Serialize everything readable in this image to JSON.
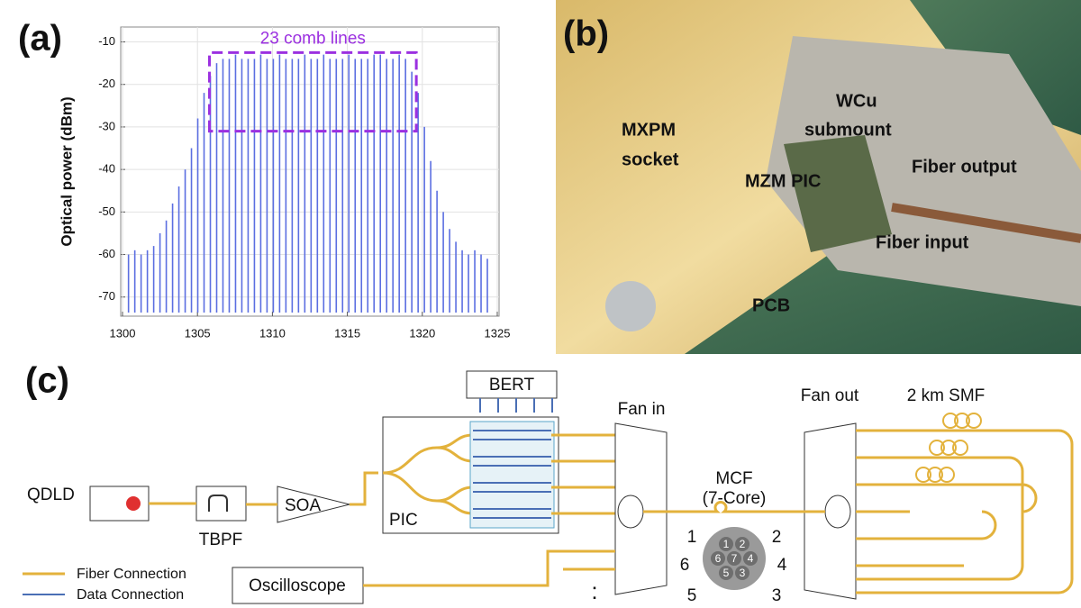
{
  "panels": {
    "a": "(a)",
    "b": "(b)",
    "c": "(c)"
  },
  "chart_data": {
    "type": "comb",
    "ylabel": "Optical power (dBm)",
    "color": "#5b6ee1",
    "x": [
      1300.4,
      1300.82,
      1301.24,
      1301.66,
      1302.08,
      1302.5,
      1302.92,
      1303.34,
      1303.76,
      1304.18,
      1304.6,
      1305.02,
      1305.44,
      1305.86,
      1306.28,
      1306.7,
      1307.12,
      1307.54,
      1307.96,
      1308.38,
      1308.8,
      1309.22,
      1309.64,
      1310.06,
      1310.48,
      1310.9,
      1311.32,
      1311.74,
      1312.16,
      1312.58,
      1313.0,
      1313.42,
      1313.84,
      1314.26,
      1314.68,
      1315.1,
      1315.52,
      1315.94,
      1316.36,
      1316.78,
      1317.2,
      1317.62,
      1318.04,
      1318.46,
      1318.88,
      1319.3,
      1319.72,
      1320.14,
      1320.56,
      1320.98,
      1321.4,
      1321.82,
      1322.24,
      1322.66,
      1323.08,
      1323.5,
      1323.92,
      1324.34
    ],
    "values": [
      -60,
      -59,
      -60,
      -59,
      -58,
      -55,
      -52,
      -48,
      -44,
      -40,
      -35,
      -28,
      -22,
      -18,
      -15,
      -14,
      -14,
      -13,
      -14,
      -14,
      -14,
      -13,
      -14,
      -14,
      -13,
      -14,
      -14,
      -14,
      -13,
      -14,
      -14,
      -13,
      -14,
      -14,
      -14,
      -13,
      -14,
      -14,
      -14,
      -13,
      -13,
      -14,
      -14,
      -13,
      -14,
      -17,
      -22,
      -30,
      -38,
      -45,
      -50,
      -54,
      -57,
      -59,
      -60,
      -59,
      -60,
      -61
    ],
    "xlim": [
      1300,
      1325
    ],
    "xticks": [
      1300,
      1305,
      1310,
      1315,
      1320,
      1325
    ],
    "ylim": [
      -74.5,
      -6.5
    ],
    "yticks": [
      -70,
      -60,
      -50,
      -40,
      -30,
      -20,
      -10
    ],
    "grid": true,
    "annotation": {
      "text": "23 comb lines",
      "color": "#9b30e0",
      "x": [
        1305.8,
        1319.6
      ],
      "y": [
        -31,
        -12.5
      ]
    }
  },
  "photo": {
    "mxpm": [
      "MXPM",
      "socket"
    ],
    "wcu": [
      "WCu",
      "submount"
    ],
    "mzm": "MZM PIC",
    "fiber_output": "Fiber output",
    "fiber_input": "Fiber input",
    "pcb": "PCB"
  },
  "diagram": {
    "bert": "BERT",
    "fan_in": "Fan in",
    "fan_out": "Fan out",
    "smf": "2 km SMF",
    "qdld": "QDLD",
    "tbpf": "TBPF",
    "soa": "SOA",
    "pic": "PIC",
    "mcf": [
      "MCF",
      "(7-Core)"
    ],
    "cores": [
      "1",
      "2",
      "3",
      "4",
      "5",
      "6",
      "7"
    ],
    "oscilloscope": "Oscilloscope",
    "legend": [
      "Fiber Connection",
      "Data Connection"
    ],
    "more": ":"
  }
}
